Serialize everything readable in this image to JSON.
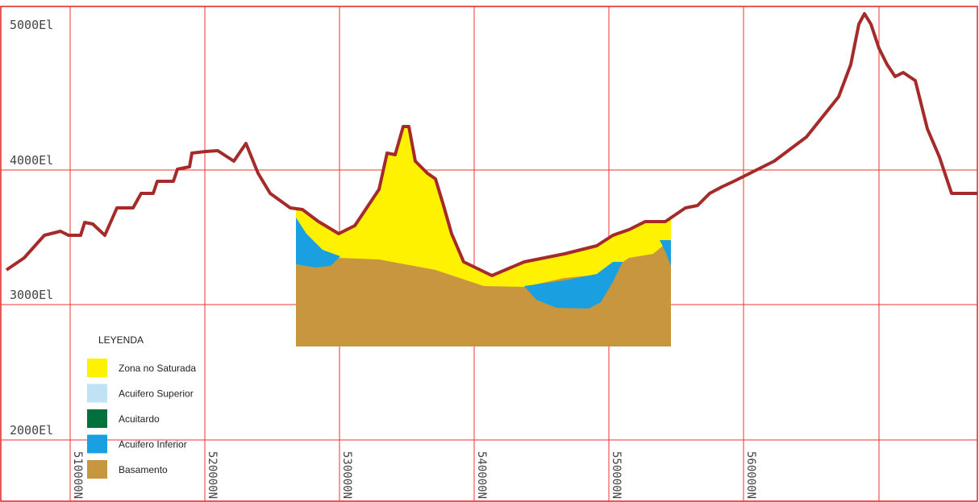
{
  "axis": {
    "y_labels": [
      "5000El",
      "4000El",
      "3000El",
      "2000El"
    ],
    "x_labels": [
      "510000N",
      "520000N",
      "530000N",
      "540000N",
      "550000N",
      "560000N"
    ]
  },
  "legend": {
    "title": "LEYENDA",
    "items": [
      {
        "label": "Zona no Saturada",
        "color": "#fff200"
      },
      {
        "label": "Acuifero Superior",
        "color": "#bfe3f5"
      },
      {
        "label": "Acuitardo",
        "color": "#00703c"
      },
      {
        "label": "Acuifero Inferior",
        "color": "#1aa0e0"
      },
      {
        "label": "Basamento",
        "color": "#c8963e"
      }
    ]
  }
}
